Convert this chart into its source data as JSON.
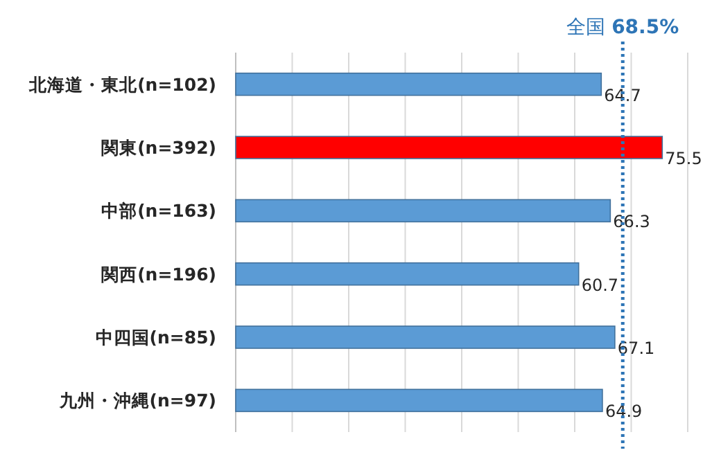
{
  "chart_data": {
    "type": "bar",
    "orientation": "horizontal",
    "categories": [
      "北海道・東北(n=102)",
      "関東(n=392)",
      "中部(n=163)",
      "関西(n=196)",
      "中四国(n=85)",
      "九州・沖縄(n=97)"
    ],
    "values": [
      64.7,
      75.5,
      66.3,
      60.7,
      67.1,
      64.9
    ],
    "colors": [
      "#5b9bd5",
      "#ff0000",
      "#5b9bd5",
      "#5b9bd5",
      "#5b9bd5",
      "#5b9bd5"
    ],
    "xlim": [
      0,
      80
    ],
    "xticks": [
      {
        "value": 0,
        "label": null
      },
      {
        "value": 10,
        "label": null
      },
      {
        "value": 20,
        "label": null
      },
      {
        "value": 30,
        "label": null
      },
      {
        "value": 40,
        "label": null
      },
      {
        "value": 50,
        "label": null
      },
      {
        "value": 60,
        "label": null
      },
      {
        "value": 70,
        "label": null
      },
      {
        "value": 80,
        "label": null
      }
    ],
    "grid": "x",
    "tick_labels": "y",
    "data_labels": true,
    "ref_lines": [
      {
        "axis": "x",
        "value": 68.5,
        "label": "全国 **68.5%**",
        "color": "#2e75b6",
        "line_style": "dotted"
      }
    ]
  }
}
